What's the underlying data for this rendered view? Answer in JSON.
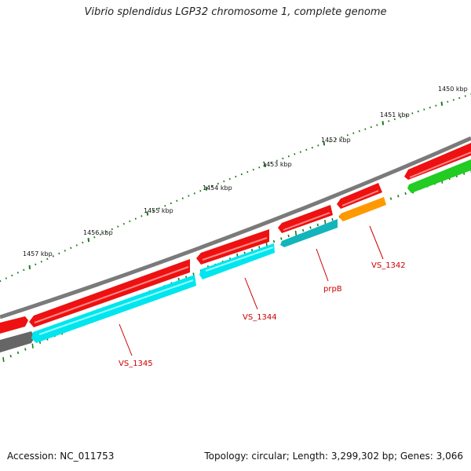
{
  "title": "Vibrio splendidus LGP32 chromosome 1, complete genome",
  "accession": "Accession: NC_011753",
  "topology": "Topology: circular; Length: 3,299,302 bp; Genes: 3,066",
  "kbp_labels": [
    {
      "text": "1450 kbp",
      "name": "kbp-label-1450"
    },
    {
      "text": "1451 kbp",
      "name": "kbp-label-1451"
    },
    {
      "text": "1452 kbp",
      "name": "kbp-label-1452"
    },
    {
      "text": "1453 kbp",
      "name": "kbp-label-1453"
    },
    {
      "text": "1454 kbp",
      "name": "kbp-label-1454"
    },
    {
      "text": "1455 kbp",
      "name": "kbp-label-1455"
    },
    {
      "text": "1456 kbp",
      "name": "kbp-label-1456"
    },
    {
      "text": "1457 kbp",
      "name": "kbp-label-1457"
    }
  ],
  "gene_labels": [
    {
      "text": "VS_1342",
      "name": "gene-label-vs1342"
    },
    {
      "text": "prpB",
      "name": "gene-label-prpb"
    },
    {
      "text": "VS_1344",
      "name": "gene-label-vs1344"
    },
    {
      "text": "VS_1345",
      "name": "gene-label-vs1345"
    }
  ],
  "colors": {
    "backbone": "#777777",
    "tick": "#1a7a1a",
    "forward_gene": "#ee1111",
    "cds_cyan": "#00e5ee",
    "cds_teal": "#11b5bb",
    "cds_orange": "#ff9900",
    "cds_green": "#22cc22",
    "cds_gray": "#666666",
    "label": "#cc0000"
  }
}
